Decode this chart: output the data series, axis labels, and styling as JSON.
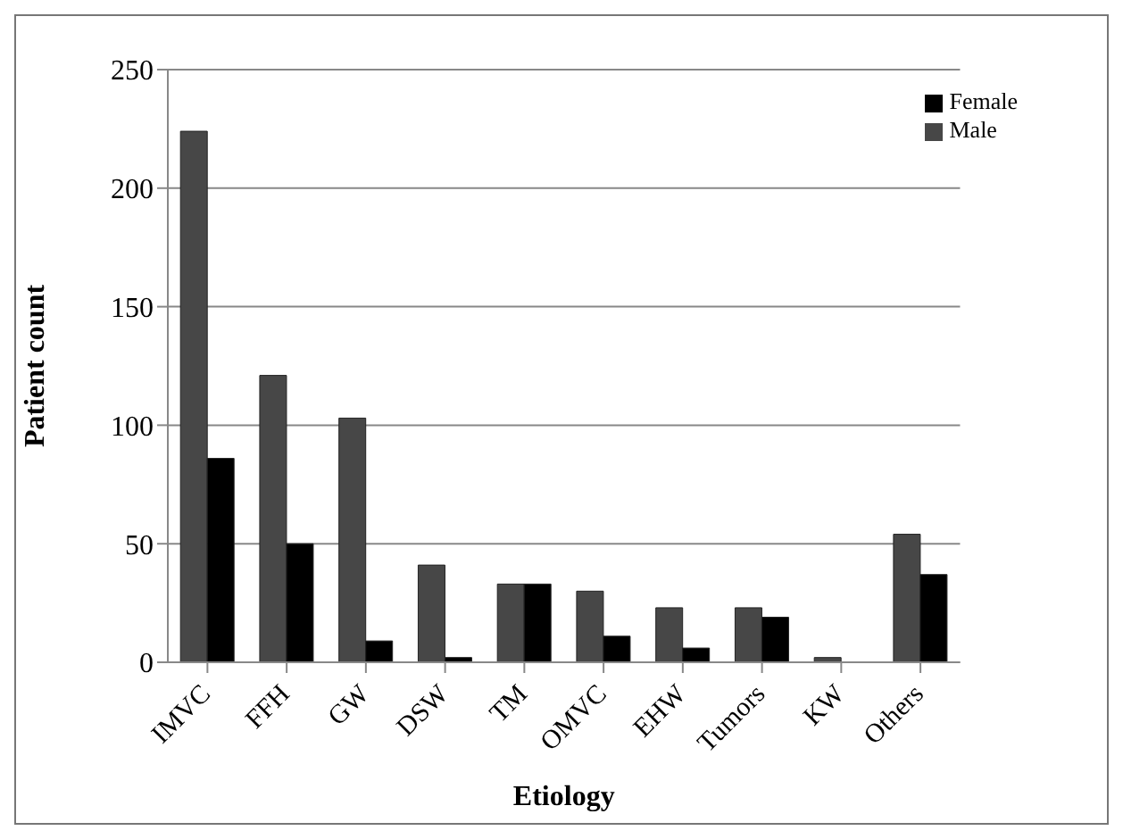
{
  "chart_data": {
    "type": "bar",
    "xlabel": "Etiology",
    "ylabel": "Patient count",
    "categories": [
      "IMVC",
      "FFH",
      "GW",
      "DSW",
      "TM",
      "OMVC",
      "EHW",
      "Tumors",
      "KW",
      "Others"
    ],
    "series": [
      {
        "name": "Male",
        "color": "#474747",
        "values": [
          224,
          121,
          103,
          41,
          33,
          30,
          23,
          23,
          2,
          54
        ]
      },
      {
        "name": "Female",
        "color": "#000000",
        "values": [
          86,
          50,
          9,
          2,
          33,
          11,
          6,
          19,
          0,
          37
        ]
      }
    ],
    "ylim": [
      0,
      250
    ],
    "yticks": [
      0,
      50,
      100,
      150,
      200,
      250
    ],
    "grid": "y",
    "legend": "top right"
  }
}
